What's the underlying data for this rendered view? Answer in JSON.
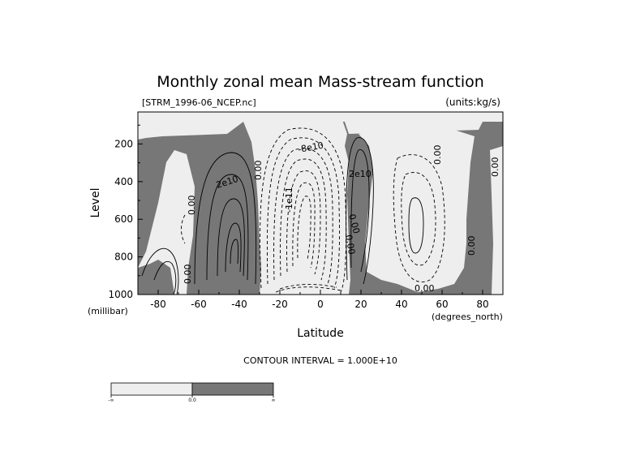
{
  "chart_data": {
    "type": "contour",
    "title": "Monthly zonal mean Mass-stream function",
    "file_label": "[STRM_1996-06_NCEP.nc]",
    "units_label": "(units:kg/s)",
    "xlabel": "Latitude",
    "ylabel": "Level",
    "x_unit": "(degrees_north)",
    "y_unit": "(millibar)",
    "x_ticks": [
      -80,
      -60,
      -40,
      -20,
      0,
      20,
      40,
      60,
      80
    ],
    "y_ticks": [
      200,
      400,
      600,
      800,
      1000
    ],
    "xlim": [
      -90,
      90
    ],
    "ylim": [
      1000,
      30
    ],
    "y_inverted": true,
    "contour_interval_text": "CONTOUR INTERVAL = 1.000E+10",
    "contour_labels": [
      "2e10",
      "0.00",
      "-1e11",
      "-8e10",
      "2e10",
      "0.00",
      "0.00",
      "0.00",
      "0.00",
      "0.00",
      "0.00",
      "0.00",
      "0.00"
    ],
    "colorbar": {
      "levels": [
        "-∞",
        "0.0",
        "∞"
      ],
      "colors": [
        "#eeeeee",
        "#777777"
      ]
    },
    "fill_colors": {
      "negative": "#eeeeee",
      "positive": "#777777"
    }
  }
}
